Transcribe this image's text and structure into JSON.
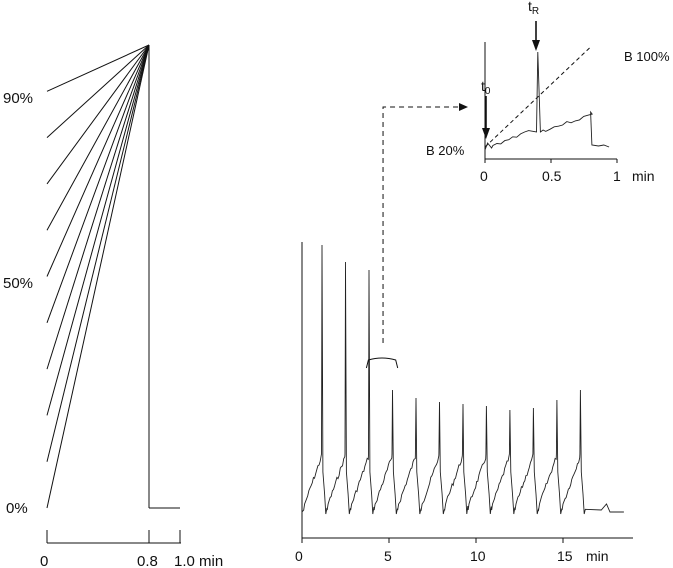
{
  "left_panel": {
    "y_labels": [
      "90%",
      "50%",
      "0%"
    ],
    "x_labels": [
      "0",
      "0.8",
      "1.0 min"
    ],
    "start_percents": [
      0,
      10,
      20,
      30,
      40,
      50,
      60,
      70,
      80,
      90
    ],
    "converge_percent": 100,
    "converge_time_min": 0.8,
    "end_time_min": 1.0
  },
  "main_chromatogram": {
    "x_ticks": [
      "0",
      "5",
      "10",
      "15"
    ],
    "x_unit": "min",
    "xlim": [
      0,
      18.5
    ],
    "injection_interval_min": 1.35,
    "injection_count": 12,
    "bracket_range_min": [
      3.7,
      5.5
    ]
  },
  "inset": {
    "x_ticks": [
      "0",
      "0.5",
      "1"
    ],
    "x_unit": "min",
    "xlim": [
      0,
      1
    ],
    "t0_label": "t",
    "t0_sub": "0",
    "tR_label": "t",
    "tR_sub": "R",
    "b_start_label": "B 20%",
    "b_end_label": "B 100%",
    "t0_min": 0.02,
    "tR_min": 0.4,
    "gradient_end_min": 0.8
  }
}
